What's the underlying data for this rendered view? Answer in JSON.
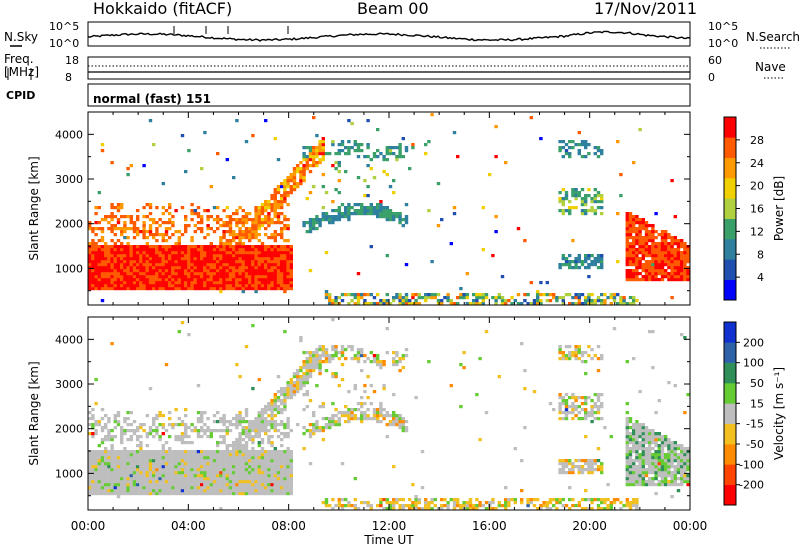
{
  "header": {
    "title": "Hokkaido (fitACF)",
    "beam": "Beam 00",
    "date": "17/Nov/2011"
  },
  "status_panel": {
    "nsky_label": "N.Sky",
    "nsearch_label": "N.Search",
    "noise_ticks": [
      "10^5",
      "10^0"
    ],
    "freq_label_line1": "Freq.",
    "freq_label_line2": "[MHz]",
    "freq_ticks": [
      "18",
      "8"
    ],
    "nave_label": "Nave",
    "nave_ticks": [
      "60",
      "0"
    ],
    "cpid_label": "CPID",
    "cpid_value": "normal (fast) 151"
  },
  "colors": {
    "power_scale": [
      "#0000ff",
      "#1f4fb0",
      "#2f7f9f",
      "#3aa06a",
      "#b0d040",
      "#f0d000",
      "#ff9900",
      "#ff5a00",
      "#ff0000"
    ],
    "velocity_scale": [
      "#1030d0",
      "#2e62a8",
      "#2f8f58",
      "#66cc33",
      "#bebebe",
      "#f2c020",
      "#ff8c00",
      "#ff4400",
      "#ff0000"
    ]
  },
  "chart_data": [
    {
      "type": "heatmap",
      "title": "Power",
      "ylabel": "Slant Range [km]",
      "ylim": [
        180,
        4500
      ],
      "yticks": [
        1000,
        2000,
        3000,
        4000
      ],
      "xlim_hours": [
        0,
        24
      ],
      "colorbar": {
        "label": "Power [dB]",
        "ticks": [
          4,
          8,
          12,
          16,
          20,
          24,
          28
        ],
        "range": [
          0,
          32
        ]
      }
    },
    {
      "type": "heatmap",
      "title": "Velocity",
      "ylabel": "Slant Range [km]",
      "ylim": [
        180,
        4500
      ],
      "yticks": [
        1000,
        2000,
        3000,
        4000
      ],
      "xlabel": "Time UT",
      "xticks": [
        "00:00",
        "04:00",
        "08:00",
        "12:00",
        "16:00",
        "20:00",
        "00:00"
      ],
      "xlim_hours": [
        0,
        24
      ],
      "colorbar": {
        "label": "Velocity [m s⁻¹]",
        "ticks": [
          "200",
          "100",
          "50",
          "15",
          "-15",
          "-50",
          "-100",
          "-200"
        ],
        "range": [
          -300,
          300
        ]
      }
    }
  ]
}
